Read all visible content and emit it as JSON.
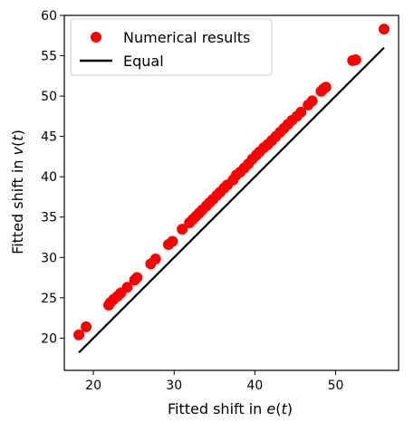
{
  "chart_data": {
    "type": "scatter",
    "title": "",
    "xlabel": "Fitted shift in e(t)",
    "xlabel_parts": [
      "Fitted shift in ",
      "e",
      "(",
      "t",
      ")"
    ],
    "ylabel": "Fitted shift in v(t)",
    "ylabel_parts": [
      "Fitted shift in ",
      "v",
      "(",
      "t",
      ")"
    ],
    "xlim": [
      16.4,
      57.8
    ],
    "ylim": [
      16.0,
      60.0
    ],
    "xticks": [
      20,
      30,
      40,
      50
    ],
    "yticks": [
      20,
      25,
      30,
      35,
      40,
      45,
      50,
      55,
      60
    ],
    "legend": {
      "position": "top-left",
      "entries": [
        "Numerical results",
        "Equal"
      ]
    },
    "series": [
      {
        "name": "Numerical results",
        "kind": "scatter",
        "color": "#ff0000",
        "points": [
          [
            18.2,
            20.4
          ],
          [
            19.1,
            21.4
          ],
          [
            21.9,
            24.1
          ],
          [
            22.1,
            24.4
          ],
          [
            22.5,
            24.8
          ],
          [
            23.0,
            25.2
          ],
          [
            23.4,
            25.6
          ],
          [
            24.2,
            26.3
          ],
          [
            25.1,
            27.2
          ],
          [
            25.4,
            27.5
          ],
          [
            27.1,
            29.2
          ],
          [
            27.7,
            29.8
          ],
          [
            29.3,
            31.6
          ],
          [
            29.8,
            32.0
          ],
          [
            31.0,
            33.5
          ],
          [
            31.9,
            34.3
          ],
          [
            32.3,
            34.7
          ],
          [
            32.7,
            35.1
          ],
          [
            33.1,
            35.5
          ],
          [
            33.5,
            35.9
          ],
          [
            34.0,
            36.4
          ],
          [
            34.4,
            36.8
          ],
          [
            34.8,
            37.2
          ],
          [
            35.3,
            37.7
          ],
          [
            35.7,
            38.1
          ],
          [
            36.2,
            38.6
          ],
          [
            36.6,
            39.0
          ],
          [
            37.3,
            39.6
          ],
          [
            37.7,
            40.2
          ],
          [
            38.2,
            40.6
          ],
          [
            38.7,
            41.1
          ],
          [
            39.2,
            41.6
          ],
          [
            39.7,
            42.2
          ],
          [
            40.2,
            42.7
          ],
          [
            40.6,
            43.1
          ],
          [
            41.1,
            43.6
          ],
          [
            41.6,
            44.0
          ],
          [
            42.1,
            44.5
          ],
          [
            42.6,
            45.0
          ],
          [
            43.1,
            45.5
          ],
          [
            43.6,
            46.0
          ],
          [
            44.1,
            46.5
          ],
          [
            44.6,
            47.0
          ],
          [
            45.2,
            47.5
          ],
          [
            45.7,
            48.0
          ],
          [
            46.6,
            48.9
          ],
          [
            47.1,
            49.4
          ],
          [
            48.2,
            50.6
          ],
          [
            48.5,
            50.9
          ],
          [
            48.8,
            51.1
          ],
          [
            52.1,
            54.4
          ],
          [
            52.5,
            54.5
          ],
          [
            56.0,
            58.3
          ]
        ]
      },
      {
        "name": "Equal",
        "kind": "line",
        "color": "#000000",
        "x": [
          18.2,
          56.0
        ],
        "y": [
          18.2,
          56.0
        ]
      }
    ]
  }
}
